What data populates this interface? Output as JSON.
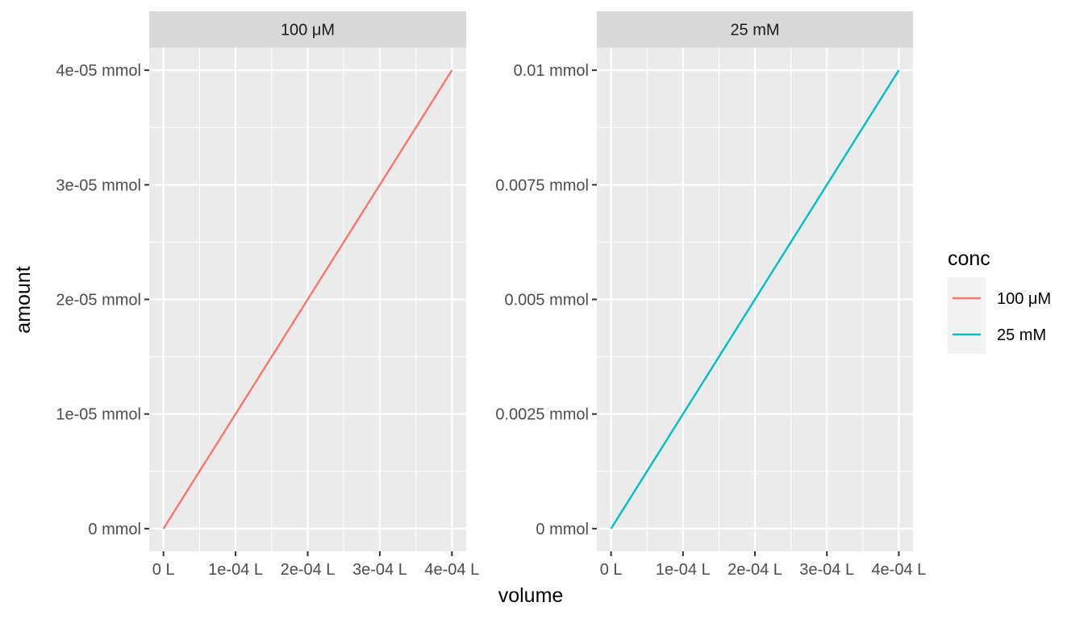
{
  "chart_data": {
    "type": "line",
    "xlabel": "volume",
    "ylabel": "amount",
    "legend": {
      "title": "conc",
      "position": "right",
      "entries": [
        {
          "label": "100 μM",
          "color": "#F8766D"
        },
        {
          "label": "25 mM",
          "color": "#00BFC4"
        }
      ]
    },
    "grid": true,
    "facets": [
      {
        "strip": "100 μM",
        "series": [
          {
            "name": "100 μM",
            "color": "#F8766D",
            "x": [
              0,
              0.0004
            ],
            "y": [
              0,
              4e-05
            ]
          }
        ],
        "xlim": [
          0,
          0.0004
        ],
        "ylim": [
          0,
          4e-05
        ],
        "xticks": [
          0,
          0.0001,
          0.0002,
          0.0003,
          0.0004
        ],
        "xtick_labels": [
          "0 L",
          "1e-04 L",
          "2e-04 L",
          "3e-04 L",
          "4e-04 L"
        ],
        "yticks": [
          0,
          1e-05,
          2e-05,
          3e-05,
          4e-05
        ],
        "ytick_labels": [
          "0 mmol",
          "1e-05 mmol",
          "2e-05 mmol",
          "3e-05 mmol",
          "4e-05 mmol"
        ]
      },
      {
        "strip": "25 mM",
        "series": [
          {
            "name": "25 mM",
            "color": "#00BFC4",
            "x": [
              0,
              0.0004
            ],
            "y": [
              0,
              0.01
            ]
          }
        ],
        "xlim": [
          0,
          0.0004
        ],
        "ylim": [
          0,
          0.01
        ],
        "xticks": [
          0,
          0.0001,
          0.0002,
          0.0003,
          0.0004
        ],
        "xtick_labels": [
          "0 L",
          "1e-04 L",
          "2e-04 L",
          "3e-04 L",
          "4e-04 L"
        ],
        "yticks": [
          0,
          0.0025,
          0.005,
          0.0075,
          0.01
        ],
        "ytick_labels": [
          "0 mmol",
          "0.0025 mmol",
          "0.005 mmol",
          "0.0075 mmol",
          "0.01 mmol"
        ]
      }
    ]
  }
}
